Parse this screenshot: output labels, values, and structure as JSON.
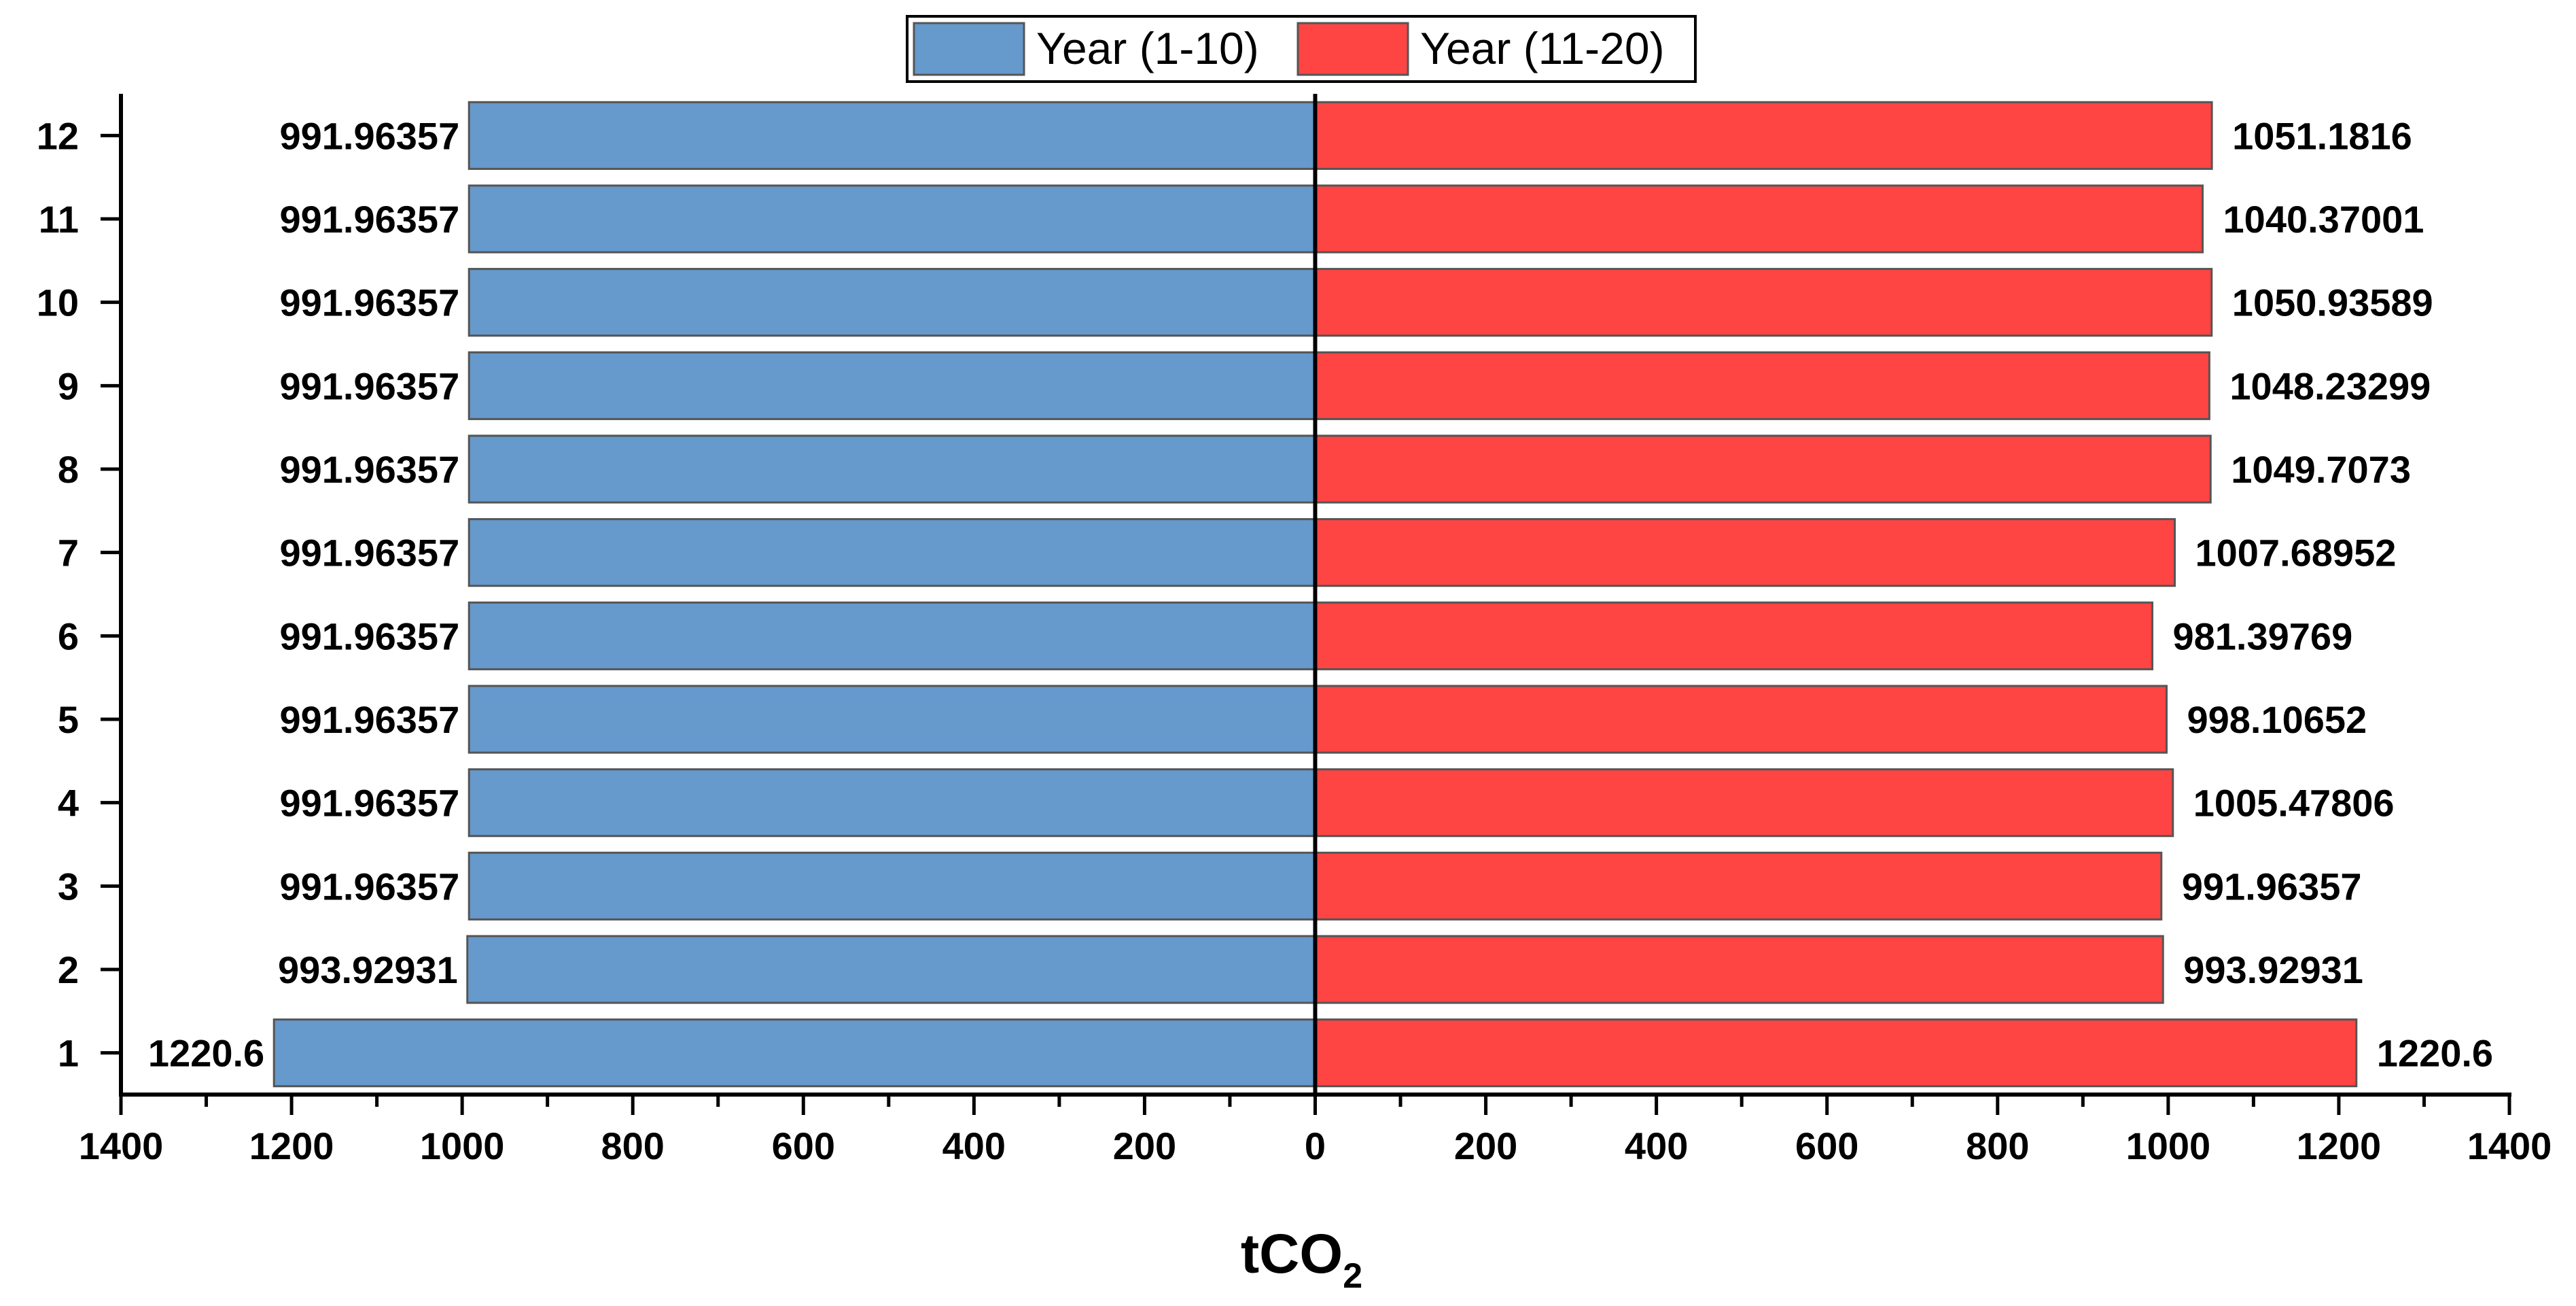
{
  "chart_data": {
    "type": "bar",
    "orientation": "horizontal-butterfly",
    "categories": [
      "1",
      "2",
      "3",
      "4",
      "5",
      "6",
      "7",
      "8",
      "9",
      "10",
      "11",
      "12"
    ],
    "series": [
      {
        "name": "Year (1-10)",
        "direction": "left",
        "color": "#6699CC",
        "values": [
          1220.6,
          993.92931,
          991.96357,
          991.96357,
          991.96357,
          991.96357,
          991.96357,
          991.96357,
          991.96357,
          991.96357,
          991.96357,
          991.96357
        ],
        "labels": [
          "1220.6",
          "993.92931",
          "991.96357",
          "991.96357",
          "991.96357",
          "991.96357",
          "991.96357",
          "991.96357",
          "991.96357",
          "991.96357",
          "991.96357",
          "991.96357"
        ]
      },
      {
        "name": "Year (11-20)",
        "direction": "right",
        "color": "#FF4444",
        "values": [
          1220.6,
          993.92931,
          991.96357,
          1005.47806,
          998.10652,
          981.39769,
          1007.68952,
          1049.7073,
          1048.23299,
          1050.93589,
          1040.37001,
          1051.1816
        ],
        "labels": [
          "1220.6",
          "993.92931",
          "991.96357",
          "1005.47806",
          "998.10652",
          "981.39769",
          "1007.68952",
          "1049.7073",
          "1048.23299",
          "1050.93589",
          "1040.37001",
          "1051.1816"
        ]
      }
    ],
    "xlabel_main": "tCO",
    "xlabel_sub": "2",
    "ylabel": "",
    "xlim": [
      -1400,
      1400
    ],
    "xticks": [
      -1400,
      -1200,
      -1000,
      -800,
      -600,
      -400,
      -200,
      0,
      200,
      400,
      600,
      800,
      1000,
      1200,
      1400
    ],
    "xtick_labels": [
      "1400",
      "1200",
      "1000",
      "800",
      "600",
      "400",
      "200",
      "0",
      "200",
      "400",
      "600",
      "800",
      "1000",
      "1200",
      "1400"
    ],
    "legend_position": "top-center",
    "grid": false
  }
}
